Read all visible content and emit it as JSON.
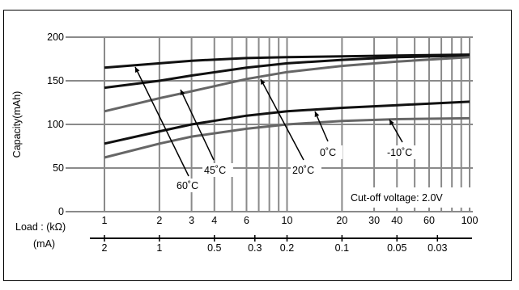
{
  "chart_data": {
    "type": "line",
    "title": "",
    "ylabel": "Capacity(mAh)",
    "ylim": [
      0,
      200
    ],
    "y_ticks": [
      0,
      50,
      100,
      150,
      200
    ],
    "x_scale": "log",
    "xlim": [
      1,
      100
    ],
    "x_load_label": "Load : (kΩ)",
    "x_ticks_kohm": [
      1,
      2,
      3,
      4,
      6,
      10,
      20,
      30,
      40,
      60,
      100
    ],
    "x_ma_label": "(mA)",
    "x_ticks_ma": [
      "2",
      "1",
      "0.5",
      "0.3",
      "0.2",
      "0.1",
      "0.05",
      "0.03"
    ],
    "annotation": "Cut-off voltage: 2.0V",
    "grid": true,
    "series": [
      {
        "name": "60˚C",
        "color": "#111111",
        "points": [
          [
            1,
            165
          ],
          [
            2,
            170
          ],
          [
            3,
            173
          ],
          [
            6,
            176
          ],
          [
            10,
            177
          ],
          [
            20,
            178
          ],
          [
            40,
            179
          ],
          [
            100,
            180
          ]
        ]
      },
      {
        "name": "45˚C",
        "color": "#111111",
        "points": [
          [
            1,
            142
          ],
          [
            2,
            150
          ],
          [
            3,
            156
          ],
          [
            6,
            165
          ],
          [
            10,
            170
          ],
          [
            20,
            174
          ],
          [
            40,
            177
          ],
          [
            100,
            179
          ]
        ]
      },
      {
        "name": "20˚C",
        "color": "#666666",
        "points": [
          [
            1,
            115
          ],
          [
            2,
            130
          ],
          [
            3,
            138
          ],
          [
            6,
            152
          ],
          [
            10,
            160
          ],
          [
            20,
            167
          ],
          [
            40,
            172
          ],
          [
            100,
            177
          ]
        ]
      },
      {
        "name": "0˚C",
        "color": "#111111",
        "points": [
          [
            1,
            78
          ],
          [
            2,
            92
          ],
          [
            3,
            100
          ],
          [
            6,
            110
          ],
          [
            10,
            115
          ],
          [
            20,
            119
          ],
          [
            40,
            122
          ],
          [
            100,
            126
          ]
        ]
      },
      {
        "name": "-10˚C",
        "color": "#666666",
        "points": [
          [
            1,
            62
          ],
          [
            2,
            78
          ],
          [
            3,
            86
          ],
          [
            6,
            95
          ],
          [
            10,
            100
          ],
          [
            20,
            104
          ],
          [
            40,
            106
          ],
          [
            100,
            107
          ]
        ]
      }
    ]
  }
}
